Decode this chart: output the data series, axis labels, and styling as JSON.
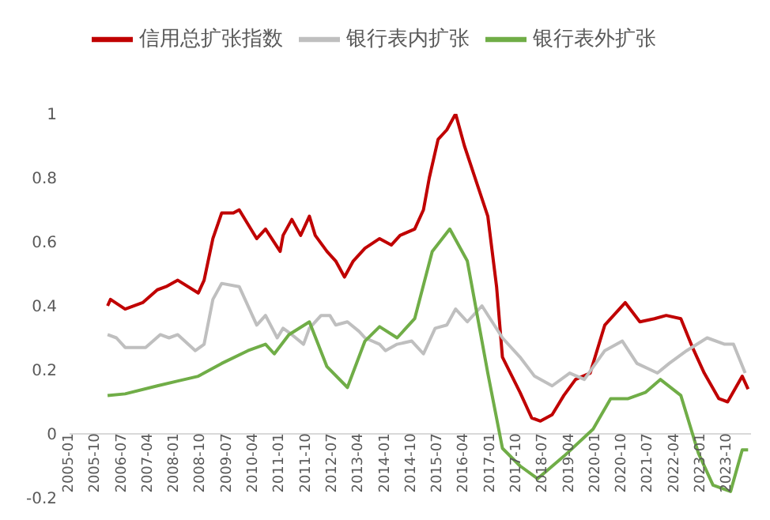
{
  "chart_data": {
    "type": "line",
    "legend": "top",
    "grid": false,
    "marker": "none",
    "line_style": "solid",
    "xlim": [
      "2005-01",
      "2024-06"
    ],
    "xticks": [
      "2005-01",
      "2005-10",
      "2006-07",
      "2007-04",
      "2008-01",
      "2008-10",
      "2009-07",
      "2010-04",
      "2011-01",
      "2011-10",
      "2012-07",
      "2013-04",
      "2014-01",
      "2014-10",
      "2015-07",
      "2016-04",
      "2017-01",
      "2017-10",
      "2018-07",
      "2019-04",
      "2020-01",
      "2020-10",
      "2021-07",
      "2022-04",
      "2023-01",
      "2023-10"
    ],
    "ylim": [
      -0.2,
      1
    ],
    "yticks": [
      -0.2,
      0,
      0.2,
      0.4,
      0.6,
      0.8,
      1
    ],
    "series": [
      {
        "name": "信用总扩张指数",
        "color": "#c00000",
        "x": [
          "2006-02",
          "2006-03",
          "2006-08",
          "2007-02",
          "2007-07",
          "2007-10",
          "2008-02",
          "2008-09",
          "2008-11",
          "2009-02",
          "2009-05",
          "2009-09",
          "2009-11",
          "2010-05",
          "2010-08",
          "2011-01",
          "2011-02",
          "2011-05",
          "2011-08",
          "2011-11",
          "2012-01",
          "2012-05",
          "2012-08",
          "2012-11",
          "2013-02",
          "2013-06",
          "2013-11",
          "2014-03",
          "2014-06",
          "2014-11",
          "2015-02",
          "2015-04",
          "2015-07",
          "2015-10",
          "2016-01",
          "2016-04",
          "2016-08",
          "2016-12",
          "2017-03",
          "2017-05",
          "2017-11",
          "2018-03",
          "2018-06",
          "2018-10",
          "2019-02",
          "2019-06",
          "2019-11",
          "2020-04",
          "2020-07",
          "2020-11",
          "2021-04",
          "2021-09",
          "2022-01",
          "2022-06",
          "2022-10",
          "2023-02",
          "2023-07",
          "2023-10",
          "2024-03",
          "2024-05"
        ],
        "values": [
          0.4,
          0.42,
          0.39,
          0.41,
          0.45,
          0.46,
          0.48,
          0.44,
          0.48,
          0.61,
          0.69,
          0.69,
          0.7,
          0.61,
          0.64,
          0.57,
          0.62,
          0.67,
          0.62,
          0.68,
          0.62,
          0.57,
          0.54,
          0.49,
          0.54,
          0.58,
          0.61,
          0.59,
          0.62,
          0.64,
          0.7,
          0.8,
          0.92,
          0.95,
          1.0,
          0.9,
          0.79,
          0.68,
          0.46,
          0.24,
          0.13,
          0.05,
          0.04,
          0.06,
          0.12,
          0.17,
          0.19,
          0.34,
          0.37,
          0.41,
          0.35,
          0.36,
          0.37,
          0.36,
          0.27,
          0.19,
          0.11,
          0.1,
          0.18,
          0.14
        ]
      },
      {
        "name": "银行表内扩张",
        "color": "#bfbfbf",
        "x": [
          "2006-02",
          "2006-05",
          "2006-08",
          "2007-03",
          "2007-08",
          "2007-11",
          "2008-02",
          "2008-08",
          "2008-11",
          "2009-02",
          "2009-05",
          "2009-11",
          "2010-05",
          "2010-08",
          "2010-12",
          "2011-02",
          "2011-05",
          "2011-09",
          "2011-11",
          "2012-03",
          "2012-06",
          "2012-08",
          "2012-12",
          "2013-04",
          "2013-06",
          "2013-11",
          "2014-01",
          "2014-05",
          "2014-10",
          "2015-02",
          "2015-06",
          "2015-10",
          "2016-01",
          "2016-05",
          "2016-10",
          "2017-05",
          "2017-11",
          "2018-04",
          "2018-10",
          "2019-04",
          "2019-09",
          "2020-04",
          "2020-10",
          "2021-03",
          "2021-10",
          "2022-02",
          "2022-08",
          "2023-03",
          "2023-09",
          "2023-12",
          "2024-04"
        ],
        "values": [
          0.31,
          0.3,
          0.27,
          0.27,
          0.31,
          0.3,
          0.31,
          0.26,
          0.28,
          0.42,
          0.47,
          0.46,
          0.34,
          0.37,
          0.3,
          0.33,
          0.31,
          0.28,
          0.33,
          0.37,
          0.37,
          0.34,
          0.35,
          0.32,
          0.3,
          0.28,
          0.26,
          0.28,
          0.29,
          0.25,
          0.33,
          0.34,
          0.39,
          0.35,
          0.4,
          0.3,
          0.24,
          0.18,
          0.15,
          0.19,
          0.17,
          0.26,
          0.29,
          0.22,
          0.19,
          0.22,
          0.26,
          0.3,
          0.28,
          0.28,
          0.19
        ]
      },
      {
        "name": "银行表外扩张",
        "color": "#70ad47",
        "x": [
          "2006-02",
          "2006-08",
          "2007-07",
          "2008-02",
          "2008-09",
          "2009-05",
          "2010-02",
          "2010-08",
          "2010-11",
          "2011-04",
          "2011-11",
          "2012-05",
          "2012-12",
          "2013-06",
          "2013-11",
          "2014-05",
          "2014-11",
          "2015-05",
          "2015-11",
          "2016-05",
          "2016-12",
          "2017-05",
          "2017-11",
          "2018-05",
          "2019-02",
          "2019-12",
          "2020-06",
          "2020-12",
          "2021-06",
          "2021-11",
          "2022-06",
          "2022-12",
          "2023-05",
          "2023-11",
          "2024-03",
          "2024-05"
        ],
        "values": [
          0.12,
          0.125,
          0.15,
          0.165,
          0.18,
          0.22,
          0.26,
          0.28,
          0.25,
          0.31,
          0.35,
          0.21,
          0.145,
          0.29,
          0.335,
          0.3,
          0.36,
          0.57,
          0.64,
          0.54,
          0.19,
          -0.045,
          -0.1,
          -0.14,
          -0.07,
          0.015,
          0.11,
          0.11,
          0.13,
          0.17,
          0.12,
          -0.06,
          -0.16,
          -0.18,
          -0.05,
          -0.05
        ]
      }
    ]
  }
}
